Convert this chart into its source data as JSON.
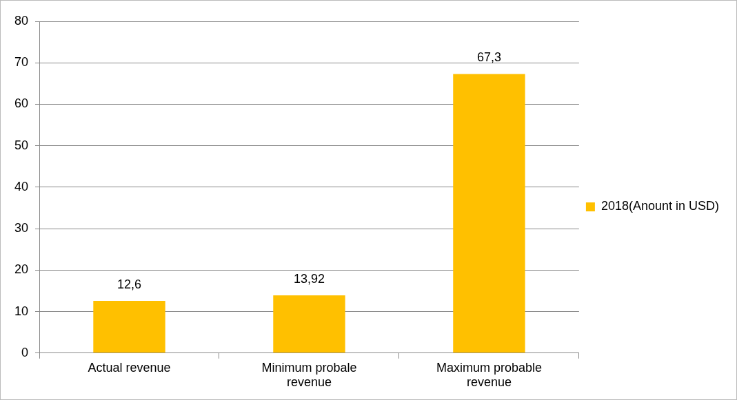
{
  "chart_data": {
    "type": "bar",
    "categories": [
      "Actual revenue",
      "Minimum probale revenue",
      "Maximum probable revenue"
    ],
    "series": [
      {
        "name": "2018(Anount in USD)",
        "color": "#ffc000",
        "values": [
          12.6,
          13.92,
          67.3
        ],
        "value_labels": [
          "12,6",
          "13,92",
          "67,3"
        ]
      }
    ],
    "ylim": [
      0,
      80
    ],
    "yticks": [
      0,
      10,
      20,
      30,
      40,
      50,
      60,
      70,
      80
    ],
    "grid": "y",
    "legend": "right"
  }
}
